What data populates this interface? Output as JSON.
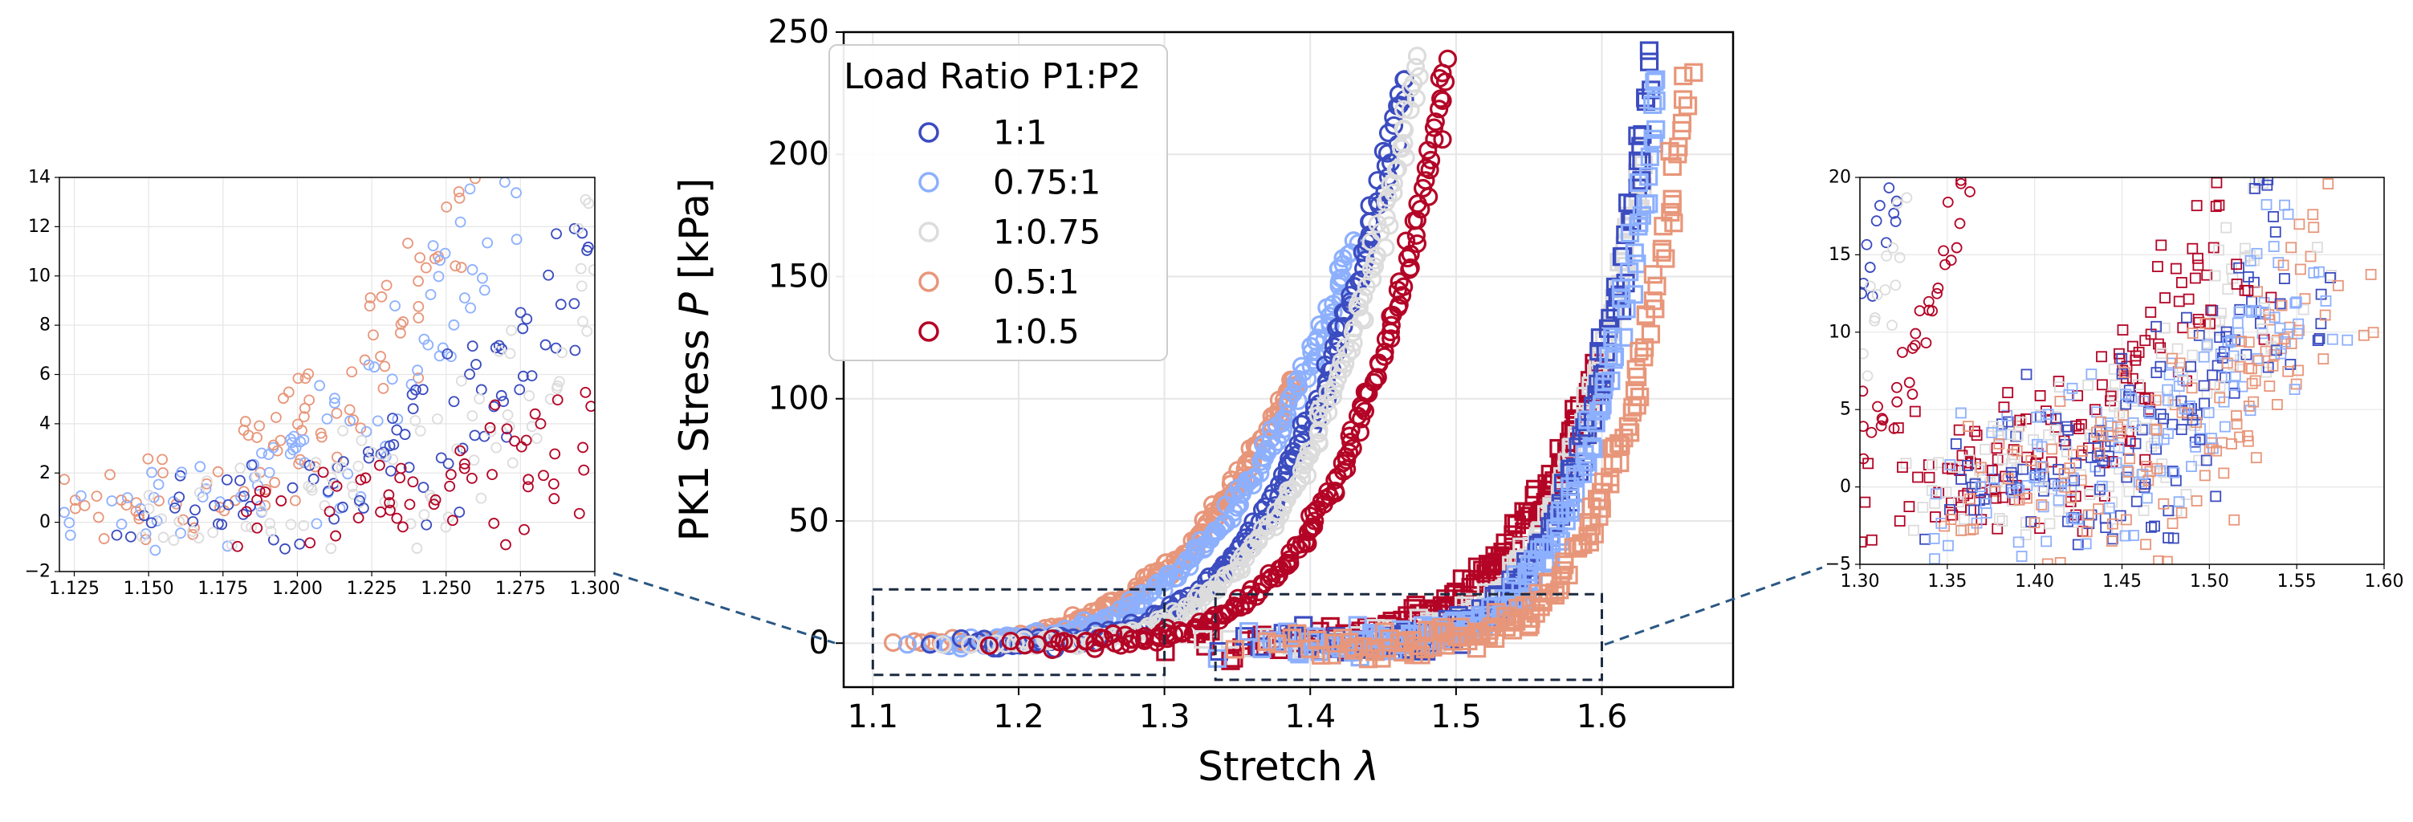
{
  "figure": {
    "description_free": true
  },
  "chart_data": [
    {
      "id": "main",
      "type": "scatter",
      "title": "",
      "xlabel_prefix": "Stretch ",
      "xlabel_symbol": "λ",
      "ylabel_prefix": "PK1 Stress ",
      "ylabel_symbol": "P",
      "ylabel_suffix": " [kPa]",
      "xlim": [
        1.08,
        1.69
      ],
      "ylim": [
        -18,
        250
      ],
      "xticks": [
        1.1,
        1.2,
        1.3,
        1.4,
        1.5,
        1.6
      ],
      "xtick_labels": [
        "1.1",
        "1.2",
        "1.3",
        "1.4",
        "1.5",
        "1.6"
      ],
      "yticks": [
        0,
        50,
        100,
        150,
        200,
        250
      ],
      "ytick_labels": [
        "0",
        "50",
        "100",
        "150",
        "200",
        "250"
      ],
      "grid": true,
      "legend": {
        "title": "Load Ratio P1:P2",
        "placement": "top-left",
        "entries": [
          {
            "label": "1:1",
            "color": "#3b4cc0"
          },
          {
            "label": "0.75:1",
            "color": "#8db0fe"
          },
          {
            "label": "1:0.75",
            "color": "#dddcdc"
          },
          {
            "label": "0.5:1",
            "color": "#e8967a"
          },
          {
            "label": "1:0.5",
            "color": "#b40426"
          }
        ]
      },
      "markers": {
        "direction_1": "circle",
        "direction_2": "square"
      },
      "series": [
        {
          "name": "0.5:1",
          "color": "#e8967a",
          "marker": "circle",
          "curve": {
            "lambda0": 1.11,
            "lambda_max": 1.39,
            "p_max": 108,
            "exponent": 3.3
          }
        },
        {
          "name": "0.75:1",
          "color": "#8db0fe",
          "marker": "circle",
          "curve": {
            "lambda0": 1.12,
            "lambda_max": 1.43,
            "p_max": 165,
            "exponent": 3.5
          }
        },
        {
          "name": "1:1",
          "color": "#3b4cc0",
          "marker": "circle",
          "curve": {
            "lambda0": 1.14,
            "lambda_max": 1.465,
            "p_max": 233,
            "exponent": 4.2
          }
        },
        {
          "name": "1:0.75",
          "color": "#dddcdc",
          "marker": "circle",
          "curve": {
            "lambda0": 1.15,
            "lambda_max": 1.475,
            "p_max": 238,
            "exponent": 4.2
          }
        },
        {
          "name": "1:0.5",
          "color": "#b40426",
          "marker": "circle",
          "curve": {
            "lambda0": 1.18,
            "lambda_max": 1.495,
            "p_max": 238,
            "exponent": 4.5
          }
        },
        {
          "name": "1:0.5",
          "color": "#b40426",
          "marker": "square",
          "curve": {
            "lambda0": 1.3,
            "lambda_max": 1.6,
            "p_max": 117,
            "exponent": 4.5
          }
        },
        {
          "name": "1:0.75",
          "color": "#dddcdc",
          "marker": "square",
          "curve": {
            "lambda0": 1.33,
            "lambda_max": 1.63,
            "p_max": 200,
            "exponent": 5.5
          }
        },
        {
          "name": "1:1",
          "color": "#3b4cc0",
          "marker": "square",
          "curve": {
            "lambda0": 1.34,
            "lambda_max": 1.635,
            "p_max": 237,
            "exponent": 6
          }
        },
        {
          "name": "0.75:1",
          "color": "#8db0fe",
          "marker": "square",
          "curve": {
            "lambda0": 1.34,
            "lambda_max": 1.64,
            "p_max": 232,
            "exponent": 6
          }
        },
        {
          "name": "0.5:1",
          "color": "#e8967a",
          "marker": "square",
          "curve": {
            "lambda0": 1.35,
            "lambda_max": 1.66,
            "p_max": 237,
            "exponent": 6.5
          }
        }
      ],
      "zoom_boxes": [
        {
          "xlim": [
            1.1,
            1.3
          ],
          "ylim": [
            -13,
            22
          ]
        },
        {
          "xlim": [
            1.335,
            1.6
          ],
          "ylim": [
            -15,
            20
          ]
        }
      ]
    },
    {
      "id": "inset-left",
      "type": "scatter",
      "xlim": [
        1.12,
        1.3
      ],
      "ylim": [
        -2,
        14
      ],
      "xticks": [
        1.125,
        1.15,
        1.175,
        1.2,
        1.225,
        1.25,
        1.275,
        1.3
      ],
      "xtick_labels": [
        "1.125",
        "1.150",
        "1.175",
        "1.200",
        "1.225",
        "1.250",
        "1.275",
        "1.300"
      ],
      "yticks": [
        -2,
        0,
        2,
        4,
        6,
        8,
        10,
        12,
        14
      ],
      "ytick_labels": [
        "−2",
        "0",
        "2",
        "4",
        "6",
        "8",
        "10",
        "12",
        "14"
      ],
      "grid": true,
      "markers": "circle"
    },
    {
      "id": "inset-right",
      "type": "scatter",
      "xlim": [
        1.3,
        1.6
      ],
      "ylim": [
        -5,
        20
      ],
      "xticks": [
        1.3,
        1.35,
        1.4,
        1.45,
        1.5,
        1.55,
        1.6
      ],
      "xtick_labels": [
        "1.30",
        "1.35",
        "1.40",
        "1.45",
        "1.50",
        "1.55",
        "1.60"
      ],
      "yticks": [
        -5,
        0,
        5,
        10,
        15,
        20
      ],
      "ytick_labels": [
        "−5",
        "0",
        "5",
        "10",
        "15",
        "20"
      ],
      "grid": true,
      "markers": "circle and square"
    }
  ]
}
